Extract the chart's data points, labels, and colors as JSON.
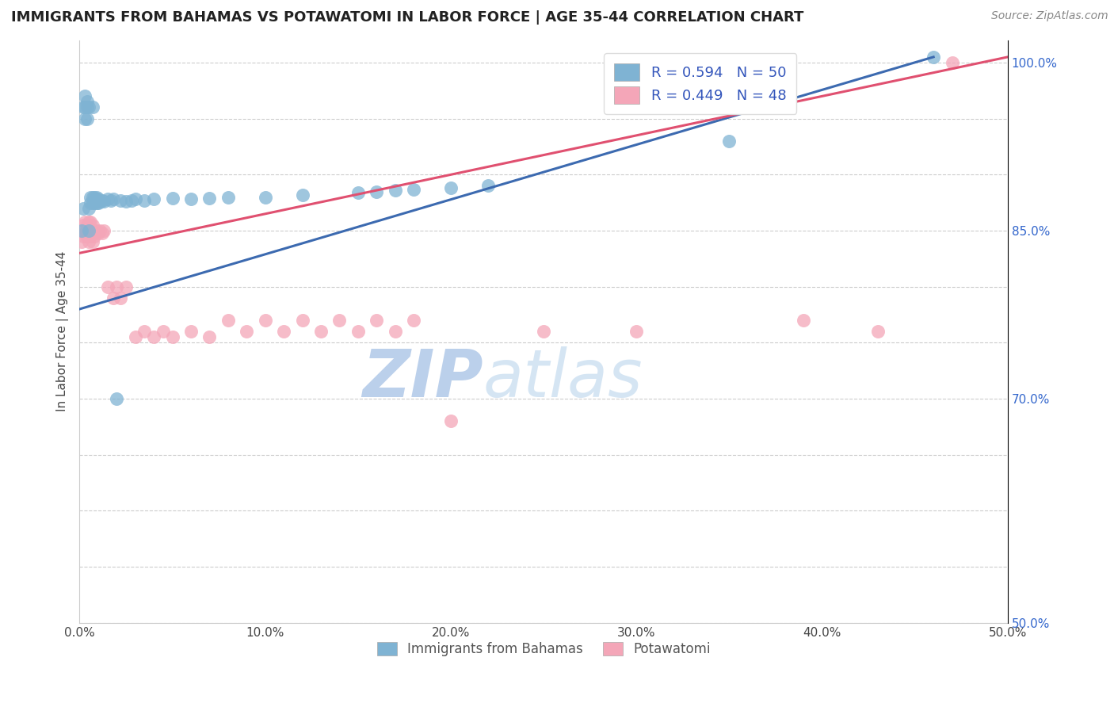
{
  "title": "IMMIGRANTS FROM BAHAMAS VS POTAWATOMI IN LABOR FORCE | AGE 35-44 CORRELATION CHART",
  "source": "Source: ZipAtlas.com",
  "ylabel": "In Labor Force | Age 35-44",
  "xmin": 0.0,
  "xmax": 0.5,
  "ymin": 0.5,
  "ymax": 1.02,
  "bahamas_R": 0.594,
  "bahamas_N": 50,
  "potawatomi_R": 0.449,
  "potawatomi_N": 48,
  "bahamas_color": "#7fb3d3",
  "potawatomi_color": "#f4a6b8",
  "bahamas_line_color": "#3c6ab0",
  "potawatomi_line_color": "#e05070",
  "watermark": "ZIPatlas",
  "watermark_color_zip": "#b8cfe8",
  "watermark_color_atlas": "#c8d8e8",
  "legend_label1": "Immigrants from Bahamas",
  "legend_label2": "Potawatomi",
  "bahamas_x": [
    0.001,
    0.002,
    0.002,
    0.003,
    0.003,
    0.003,
    0.004,
    0.004,
    0.004,
    0.005,
    0.005,
    0.005,
    0.006,
    0.006,
    0.007,
    0.007,
    0.007,
    0.008,
    0.008,
    0.009,
    0.009,
    0.01,
    0.01,
    0.011,
    0.012,
    0.013,
    0.015,
    0.017,
    0.018,
    0.02,
    0.022,
    0.025,
    0.028,
    0.03,
    0.035,
    0.04,
    0.05,
    0.06,
    0.07,
    0.08,
    0.1,
    0.12,
    0.15,
    0.16,
    0.17,
    0.18,
    0.2,
    0.22,
    0.35,
    0.46
  ],
  "bahamas_y": [
    0.85,
    0.87,
    0.96,
    0.96,
    0.97,
    0.95,
    0.95,
    0.96,
    0.965,
    0.85,
    0.87,
    0.96,
    0.875,
    0.88,
    0.875,
    0.88,
    0.96,
    0.875,
    0.88,
    0.875,
    0.88,
    0.875,
    0.878,
    0.876,
    0.877,
    0.876,
    0.878,
    0.877,
    0.878,
    0.7,
    0.877,
    0.876,
    0.877,
    0.878,
    0.877,
    0.878,
    0.879,
    0.878,
    0.879,
    0.88,
    0.88,
    0.882,
    0.884,
    0.885,
    0.886,
    0.887,
    0.888,
    0.89,
    0.93,
    1.005
  ],
  "potawatomi_x": [
    0.001,
    0.002,
    0.002,
    0.003,
    0.003,
    0.004,
    0.004,
    0.005,
    0.005,
    0.006,
    0.006,
    0.007,
    0.007,
    0.008,
    0.009,
    0.01,
    0.011,
    0.012,
    0.013,
    0.015,
    0.018,
    0.02,
    0.022,
    0.025,
    0.03,
    0.035,
    0.04,
    0.045,
    0.05,
    0.06,
    0.07,
    0.08,
    0.09,
    0.1,
    0.11,
    0.12,
    0.13,
    0.14,
    0.15,
    0.16,
    0.17,
    0.18,
    0.2,
    0.25,
    0.3,
    0.39,
    0.43,
    0.47
  ],
  "potawatomi_y": [
    0.84,
    0.845,
    0.855,
    0.848,
    0.858,
    0.845,
    0.855,
    0.84,
    0.858,
    0.845,
    0.858,
    0.84,
    0.855,
    0.845,
    0.85,
    0.848,
    0.85,
    0.848,
    0.85,
    0.8,
    0.79,
    0.8,
    0.79,
    0.8,
    0.755,
    0.76,
    0.755,
    0.76,
    0.755,
    0.76,
    0.755,
    0.77,
    0.76,
    0.77,
    0.76,
    0.77,
    0.76,
    0.77,
    0.76,
    0.77,
    0.76,
    0.77,
    0.68,
    0.76,
    0.76,
    0.77,
    0.76,
    1.0
  ],
  "blue_line_x0": 0.0,
  "blue_line_y0": 0.78,
  "blue_line_x1": 0.46,
  "blue_line_y1": 1.005,
  "pink_line_x0": 0.0,
  "pink_line_y0": 0.83,
  "pink_line_x1": 0.5,
  "pink_line_y1": 1.005
}
